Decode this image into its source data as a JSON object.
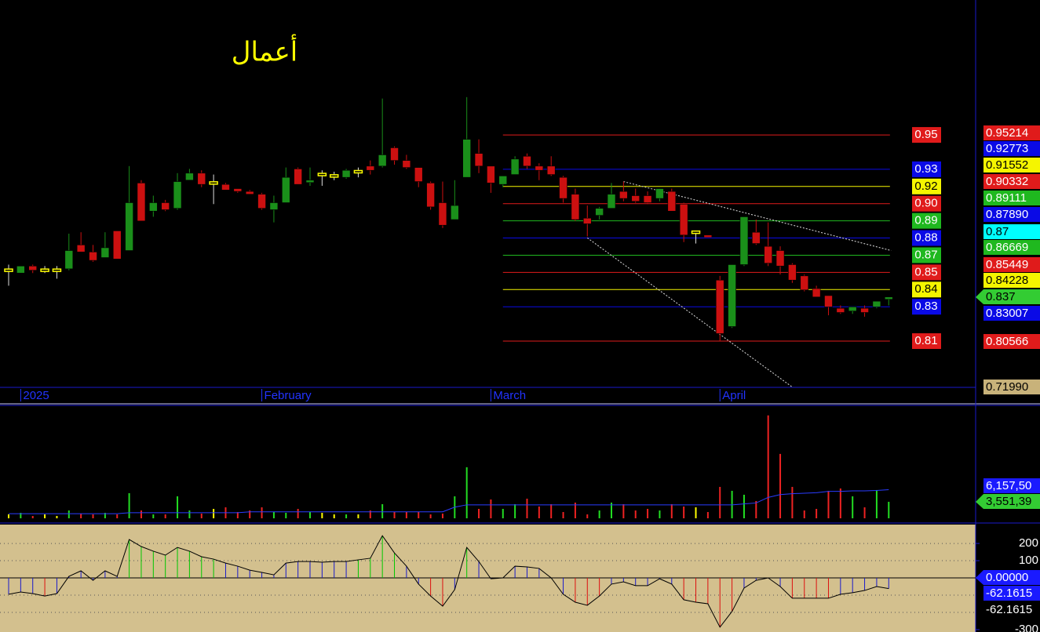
{
  "chart_data": [
    {
      "type": "candlestick",
      "title": "أعمال",
      "title_color": "#ffff00",
      "categories": [
        null,
        "2025",
        null,
        null,
        null,
        null,
        null,
        null,
        null,
        null,
        null,
        null,
        null,
        null,
        null,
        null,
        null,
        null,
        null,
        null,
        null,
        "February",
        null,
        null,
        null,
        null,
        null,
        null,
        null,
        null,
        null,
        null,
        null,
        null,
        null,
        null,
        null,
        null,
        null,
        null,
        "March",
        null,
        null,
        null,
        null,
        null,
        null,
        null,
        null,
        null,
        null,
        null,
        null,
        null,
        null,
        null,
        null,
        null,
        null,
        "April",
        null,
        null,
        null,
        null,
        null,
        null,
        null,
        null,
        null,
        null,
        null,
        null,
        null,
        null
      ],
      "open": [
        0.856,
        0.854,
        0.859,
        0.856,
        0.856,
        0.857,
        0.874,
        0.869,
        0.865,
        0.884,
        0.87,
        0.918,
        0.898,
        0.904,
        0.9,
        0.92,
        0.925,
        0.918,
        0.917,
        0.914,
        0.912,
        0.91,
        0.899,
        0.904,
        0.928,
        0.919,
        0.924,
        0.923,
        0.922,
        0.926,
        0.93,
        0.93,
        0.943,
        0.934,
        0.929,
        0.918,
        0.904,
        0.892,
        0.922,
        0.939,
        0.93,
        0.917,
        0.924,
        0.937,
        0.93,
        0.93,
        0.922,
        0.91,
        0.893,
        0.895,
        0.9,
        0.912,
        0.909,
        0.909,
        0.907,
        0.912,
        0.903,
        0.883,
        0.881,
        0.849,
        0.816,
        0.86,
        0.883,
        0.873,
        0.87,
        0.86,
        0.852,
        0.843,
        0.838,
        0.829,
        0.827,
        0.829,
        0.83,
        0.836
      ],
      "high": [
        0.86,
        0.859,
        0.86,
        0.859,
        0.859,
        0.882,
        0.883,
        0.874,
        0.883,
        0.884,
        0.93,
        0.92,
        0.909,
        0.906,
        0.925,
        0.928,
        0.927,
        0.924,
        0.918,
        0.914,
        0.913,
        0.911,
        0.909,
        0.929,
        0.929,
        0.929,
        0.927,
        0.926,
        0.928,
        0.929,
        0.934,
        0.978,
        0.944,
        0.938,
        0.929,
        0.919,
        0.919,
        0.92,
        0.979,
        0.949,
        0.93,
        0.923,
        0.937,
        0.939,
        0.932,
        0.937,
        0.923,
        0.914,
        0.902,
        0.901,
        0.918,
        0.919,
        0.914,
        0.912,
        0.914,
        0.914,
        0.904,
        0.884,
        0.881,
        0.852,
        0.86,
        0.894,
        0.892,
        0.89,
        0.873,
        0.861,
        0.853,
        0.845,
        0.838,
        0.831,
        0.83,
        0.831,
        0.834,
        0.837
      ],
      "low": [
        0.845,
        0.854,
        0.854,
        0.854,
        0.85,
        0.856,
        0.869,
        0.862,
        0.865,
        0.864,
        0.87,
        0.891,
        0.894,
        0.898,
        0.899,
        0.92,
        0.915,
        0.903,
        0.913,
        0.911,
        0.91,
        0.899,
        0.89,
        0.904,
        0.917,
        0.916,
        0.916,
        0.92,
        0.921,
        0.922,
        0.924,
        0.929,
        0.931,
        0.928,
        0.915,
        0.899,
        0.886,
        0.892,
        0.922,
        0.925,
        0.911,
        0.915,
        0.924,
        0.928,
        0.92,
        0.923,
        0.904,
        0.891,
        0.88,
        0.892,
        0.9,
        0.905,
        0.904,
        0.903,
        0.905,
        0.898,
        0.876,
        0.875,
        0.88,
        0.806,
        0.815,
        0.859,
        0.874,
        0.859,
        0.853,
        0.847,
        0.841,
        0.837,
        0.824,
        0.825,
        0.825,
        0.823,
        0.829,
        0.831
      ],
      "close": [
        0.856,
        0.859,
        0.856,
        0.856,
        0.856,
        0.87,
        0.869,
        0.863,
        0.872,
        0.864,
        0.904,
        0.891,
        0.904,
        0.899,
        0.919,
        0.925,
        0.917,
        0.918,
        0.913,
        0.912,
        0.91,
        0.9,
        0.904,
        0.922,
        0.917,
        0.92,
        0.924,
        0.923,
        0.927,
        0.926,
        0.927,
        0.938,
        0.934,
        0.929,
        0.919,
        0.901,
        0.888,
        0.902,
        0.949,
        0.93,
        0.918,
        0.923,
        0.935,
        0.93,
        0.927,
        0.924,
        0.907,
        0.892,
        0.889,
        0.9,
        0.91,
        0.907,
        0.905,
        0.904,
        0.914,
        0.898,
        0.881,
        0.883,
        0.88,
        0.811,
        0.86,
        0.894,
        0.875,
        0.861,
        0.859,
        0.849,
        0.842,
        0.837,
        0.83,
        0.826,
        0.83,
        0.826,
        0.834,
        0.837
      ],
      "up_color": "#1a8f1a",
      "down_color": "#cc1010",
      "flat_color": "#ffff00",
      "ylim": [
        0.7728,
        1.048
      ],
      "level_x": [
        41,
        73.1
      ],
      "levels": [
        {
          "value": 0.95214,
          "label": "0.95",
          "axis_label": "0.95214",
          "color": "#e01b1b"
        },
        {
          "value": 0.92773,
          "label": "0.93",
          "axis_label": "0.92773",
          "color": "#0a0ae6"
        },
        {
          "value": 0.91552,
          "label": "0.92",
          "axis_label": "0.91552",
          "color": "#f5f500"
        },
        {
          "value": 0.90332,
          "label": "0.90",
          "axis_label": "0.90332",
          "color": "#e01b1b"
        },
        {
          "value": 0.89111,
          "label": "0.89",
          "axis_label": "0.89111",
          "color": "#1fb81f"
        },
        {
          "value": 0.8789,
          "label": "0.88",
          "axis_label": "0.87890",
          "color": "#0a0ae6"
        },
        {
          "value": 0.86669,
          "label": "0.87",
          "axis_label": "0.86669",
          "color": "#1fb81f"
        },
        {
          "value": 0.85449,
          "label": "0.85",
          "axis_label": "0.85449",
          "color": "#e01b1b"
        },
        {
          "value": 0.84228,
          "label": "0.84",
          "axis_label": "0.84228",
          "color": "#f5f500"
        },
        {
          "value": 0.83007,
          "label": "0.83",
          "axis_label": "0.83007",
          "color": "#0a0ae6"
        },
        {
          "value": 0.80566,
          "label": "0.81",
          "axis_label": "0.80566",
          "color": "#e01b1b"
        }
      ],
      "price_markers": [
        {
          "value": 0.87,
          "label": "0.87",
          "color": "#00ffff"
        },
        {
          "value": 0.837,
          "label": "0.837",
          "color": "#33cc33"
        },
        {
          "value": 0.7199,
          "label": "0.71990",
          "color": "#c8b27a"
        }
      ],
      "trendlines": [
        {
          "x": [
            51,
            73.2
          ],
          "y": [
            0.919,
            0.87
          ]
        },
        {
          "x": [
            48,
            65
          ],
          "y": [
            0.879,
            0.773
          ]
        }
      ],
      "axis_color": "#2233ff"
    },
    {
      "type": "bar",
      "values": [
        845000,
        1183000,
        507000,
        845000,
        507000,
        1690000,
        1014000,
        845000,
        1183000,
        845000,
        5408000,
        1690000,
        845000,
        845000,
        4732000,
        1690000,
        1014000,
        2028000,
        2366000,
        1352000,
        1690000,
        2366000,
        1352000,
        1183000,
        2028000,
        1352000,
        1183000,
        845000,
        845000,
        845000,
        1690000,
        3042000,
        1352000,
        1352000,
        1352000,
        845000,
        1014000,
        4732000,
        10985000,
        2028000,
        4056000,
        2028000,
        3042000,
        4225000,
        2535000,
        3042000,
        1352000,
        3380000,
        845000,
        1690000,
        3380000,
        3042000,
        1690000,
        2028000,
        1690000,
        3042000,
        2535000,
        2366000,
        1352000,
        6760000,
        5915000,
        5070000,
        3718000,
        22139000,
        13858000,
        6760000,
        1690000,
        2028000,
        5915000,
        6422000,
        4732000,
        2366000,
        6084000,
        3551390
      ],
      "average": [
        1000000,
        1000000,
        1000000,
        1000000,
        1000000,
        1000000,
        1000000,
        1000000,
        1000000,
        1000000,
        1200000,
        1200000,
        1200000,
        1200000,
        1200000,
        1200000,
        1200000,
        1200000,
        1200000,
        1200000,
        1400000,
        1400000,
        1400000,
        1400000,
        1400000,
        1400000,
        1400000,
        1400000,
        1400000,
        1400000,
        1400000,
        1400000,
        1400000,
        1400000,
        1400000,
        1400000,
        1400000,
        2400000,
        2900000,
        2900000,
        2900000,
        2900000,
        2900000,
        2900000,
        2900000,
        2900000,
        2900000,
        2900000,
        2900000,
        2900000,
        2900000,
        2900000,
        2900000,
        2900000,
        2900000,
        2900000,
        2900000,
        2900000,
        2900000,
        2900000,
        2900000,
        3100000,
        3300000,
        4500000,
        5100000,
        5300000,
        5400000,
        5500000,
        5800000,
        5800000,
        5900000,
        5900000,
        6000000,
        6157500
      ],
      "average_color": "#2a3cff",
      "ylim": [
        0,
        24300000
      ],
      "markers": [
        {
          "label": "6,157,50",
          "color": "#1a1aff"
        },
        {
          "label": "3,551,39",
          "color": "#33cc33"
        }
      ]
    },
    {
      "type": "line",
      "values": [
        -95,
        -82,
        -91,
        -105,
        -91,
        9,
        41,
        -14,
        41,
        9,
        223,
        182,
        155,
        132,
        177,
        155,
        123,
        109,
        86,
        68,
        45,
        32,
        18,
        86,
        95,
        95,
        91,
        95,
        95,
        105,
        114,
        245,
        145,
        68,
        -36,
        -105,
        -164,
        -68,
        177,
        95,
        -5,
        0,
        68,
        64,
        55,
        0,
        -95,
        -141,
        -159,
        -105,
        -36,
        -23,
        -45,
        -45,
        -5,
        -36,
        -127,
        -141,
        -150,
        -286,
        -195,
        -59,
        -14,
        0,
        -50,
        -118,
        -118,
        -118,
        -118,
        -95,
        -86,
        -73,
        -50,
        -62.1615
      ],
      "ylim": [
        -314,
        305
      ],
      "yticks": [
        200,
        100,
        -300
      ],
      "grid": [
        200,
        100,
        -100,
        -200
      ],
      "bands": [
        100,
        -100
      ],
      "band_colors": [
        "#00c800",
        "#1a1acc",
        "#dd1010"
      ],
      "line_color": "#000000",
      "background": "#d3c08e",
      "markers": [
        {
          "value": 0,
          "label": "0.00000",
          "color": "#1a1aff"
        },
        {
          "value": -62.1615,
          "label": "-62.1615",
          "color": "#1a1aff"
        },
        {
          "value": -62.1615,
          "label": "-62.1615",
          "color": "#000000"
        }
      ]
    }
  ]
}
